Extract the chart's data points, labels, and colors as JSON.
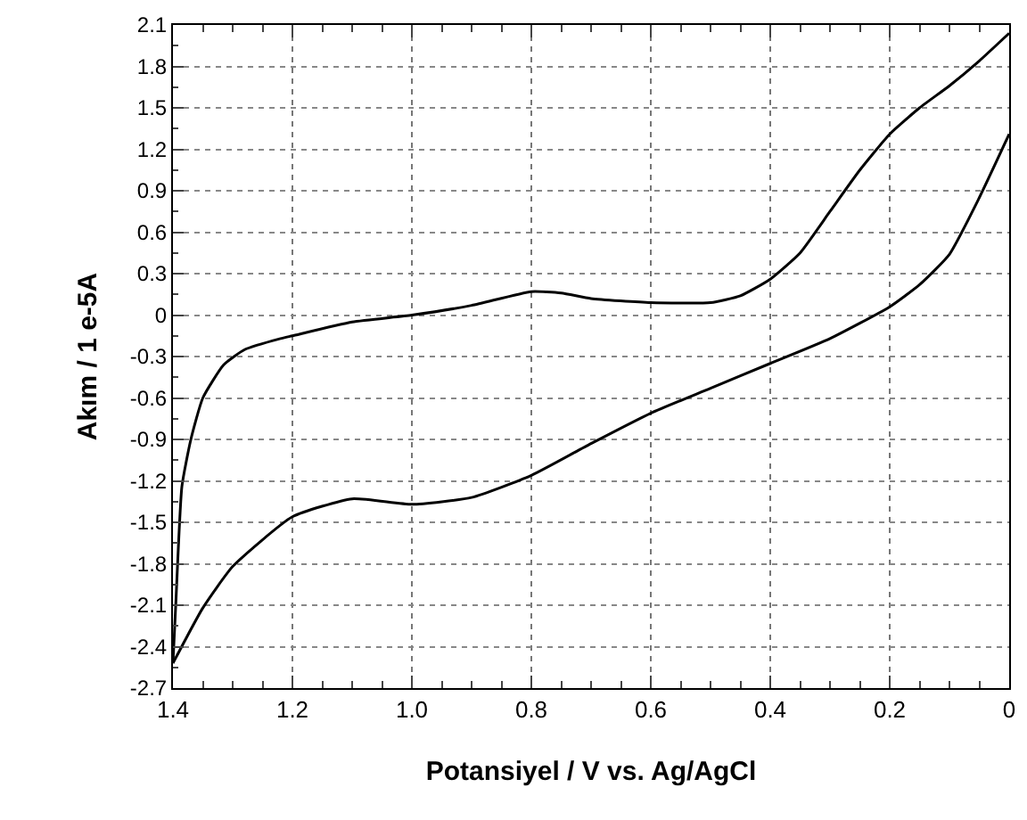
{
  "chart_data": {
    "type": "line",
    "xlabel": "Potansiyel / V vs. Ag/AgCl",
    "ylabel": "Akım / 1 e-5A",
    "series": [
      {
        "color": "#000000",
        "x": [
          1.4,
          1.395,
          1.385,
          1.37,
          1.35,
          1.315,
          1.28,
          1.22,
          1.2,
          1.1,
          1.0,
          0.9,
          0.8,
          0.75,
          0.7,
          0.6,
          0.5,
          0.45,
          0.4,
          0.35,
          0.3,
          0.25,
          0.2,
          0.15,
          0.1,
          0.05,
          0.0
        ],
        "values": [
          -2.52,
          -2.07,
          -1.24,
          -0.9,
          -0.6,
          -0.36,
          -0.25,
          -0.17,
          -0.15,
          -0.05,
          0.0,
          0.07,
          0.17,
          0.16,
          0.12,
          0.09,
          0.09,
          0.14,
          0.26,
          0.45,
          0.75,
          1.05,
          1.31,
          1.5,
          1.66,
          1.84,
          2.04
        ]
      },
      {
        "color": "#000000",
        "x": [
          0.0,
          0.05,
          0.1,
          0.15,
          0.2,
          0.3,
          0.4,
          0.5,
          0.6,
          0.7,
          0.8,
          0.9,
          1.0,
          1.1,
          1.2,
          1.3,
          1.35,
          1.4
        ],
        "values": [
          1.31,
          0.85,
          0.44,
          0.22,
          0.06,
          -0.17,
          -0.35,
          -0.53,
          -0.71,
          -0.93,
          -1.16,
          -1.32,
          -1.37,
          -1.33,
          -1.46,
          -1.82,
          -2.12,
          -2.52
        ]
      }
    ],
    "xlim": [
      1.4,
      0
    ],
    "xticks": [
      1.4,
      1.2,
      {
        "value": 1.0,
        "label": "1.0"
      },
      0.8,
      0.6,
      0.4,
      0.2,
      0
    ],
    "ylim": [
      -2.7,
      2.1
    ],
    "yticks": [
      -2.7,
      -2.4,
      -2.1,
      -1.8,
      -1.5,
      -1.2,
      -0.9,
      -0.6,
      -0.3,
      0,
      0.3,
      0.6,
      0.9,
      1.2,
      1.5,
      1.8,
      2.1
    ],
    "grid": true,
    "marker": "none",
    "line_style": "solid"
  }
}
